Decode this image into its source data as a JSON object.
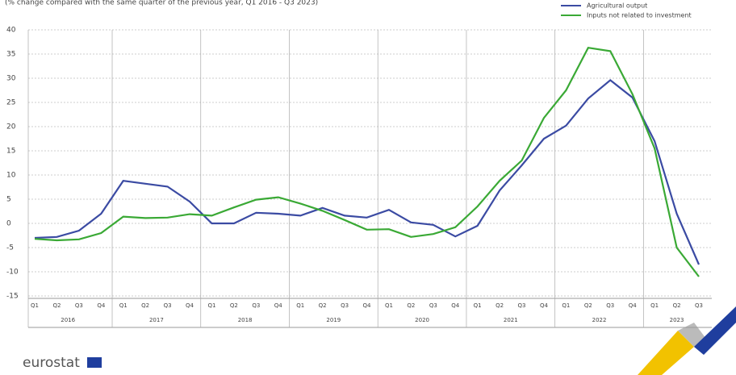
{
  "chart_data": {
    "type": "line",
    "subtitle": "(% change compared with the same quarter of the previous year, Q1 2016 - Q3 2023)",
    "categories": [
      "Q1",
      "Q2",
      "Q3",
      "Q4",
      "Q1",
      "Q2",
      "Q3",
      "Q4",
      "Q1",
      "Q2",
      "Q3",
      "Q4",
      "Q1",
      "Q2",
      "Q3",
      "Q4",
      "Q1",
      "Q2",
      "Q3",
      "Q4",
      "Q1",
      "Q2",
      "Q3",
      "Q4",
      "Q1",
      "Q2",
      "Q3",
      "Q4",
      "Q1",
      "Q2",
      "Q3"
    ],
    "years": [
      "2016",
      "2017",
      "2018",
      "2019",
      "2020",
      "2021",
      "2022",
      "2023"
    ],
    "series": [
      {
        "name": "Agricultural output",
        "color": "#3b4ba3",
        "values": [
          -3,
          -2.8,
          -1.5,
          2,
          8.8,
          8.2,
          7.6,
          4.5,
          0,
          0,
          2.2,
          2,
          1.6,
          3.2,
          1.6,
          1.2,
          2.8,
          0.2,
          -0.3,
          -2.7,
          -0.5,
          6.8,
          12,
          17.5,
          20.2,
          25.8,
          29.6,
          26,
          17,
          2,
          -8.5
        ]
      },
      {
        "name": "Inputs not related to investment",
        "color": "#3aa935",
        "values": [
          -3.2,
          -3.5,
          -3.3,
          -2,
          1.4,
          1.1,
          1.2,
          1.9,
          1.6,
          3.3,
          4.9,
          5.4,
          4.1,
          2.6,
          0.7,
          -1.3,
          -1.2,
          -2.8,
          -2.2,
          -0.8,
          3.5,
          8.8,
          13,
          21.8,
          27.5,
          36.3,
          35.6,
          26.7,
          15.5,
          -5,
          -11
        ]
      }
    ],
    "ylim": [
      -15,
      40
    ],
    "yticks": [
      -15,
      -10,
      -5,
      0,
      5,
      10,
      15,
      20,
      25,
      30,
      35,
      40
    ],
    "grid": true,
    "legend": "top-right"
  },
  "brand": "eurostat"
}
